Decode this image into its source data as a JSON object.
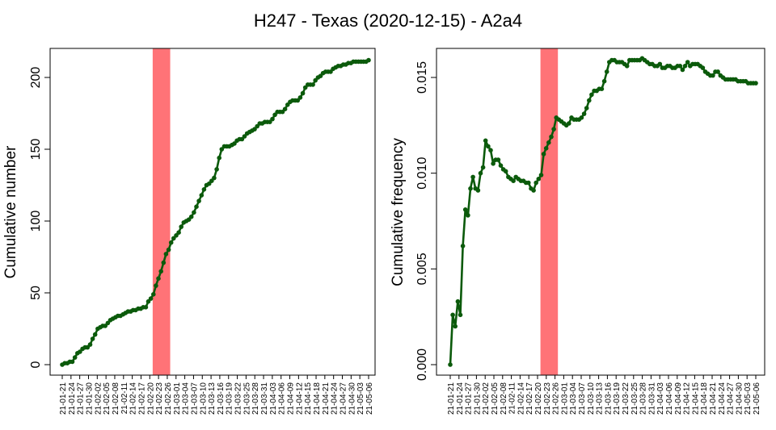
{
  "title": "H247 - Texas (2020-12-15) - A2a4",
  "colors": {
    "line": "#0b5a0b",
    "highlight": "#ff7377",
    "frame": "#000000"
  },
  "x_tick_labels": [
    "21-01-21",
    "21-01-24",
    "21-01-27",
    "21-01-30",
    "21-02-02",
    "21-02-05",
    "21-02-08",
    "21-02-11",
    "21-02-14",
    "21-02-17",
    "21-02-20",
    "21-02-23",
    "21-02-26",
    "21-03-01",
    "21-03-04",
    "21-03-07",
    "21-03-10",
    "21-03-13",
    "21-03-16",
    "21-03-19",
    "21-03-22",
    "21-03-25",
    "21-03-28",
    "21-03-31",
    "21-04-03",
    "21-04-06",
    "21-04-09",
    "21-04-12",
    "21-04-15",
    "21-04-18",
    "21-04-21",
    "21-04-24",
    "21-04-27",
    "21-04-30",
    "21-05-03",
    "21-05-06"
  ],
  "chart_data": [
    {
      "type": "line",
      "x_start": "21-01-21",
      "x_end": "21-05-06",
      "highlight_span": [
        "21-02-21",
        "21-02-27"
      ],
      "xlabel": "",
      "ylabel": "Cumulative number",
      "ylim": [
        0,
        220
      ],
      "yticks": [
        0,
        50,
        100,
        150,
        200
      ],
      "grid": false,
      "values": [
        0,
        1,
        1,
        2,
        2,
        5,
        8,
        9,
        11,
        12,
        12,
        14,
        18,
        21,
        25,
        26,
        27,
        27,
        29,
        31,
        32,
        33,
        34,
        34,
        35,
        36,
        37,
        37,
        38,
        38,
        39,
        39,
        40,
        40,
        44,
        46,
        49,
        55,
        60,
        65,
        71,
        77,
        80,
        85,
        88,
        90,
        92,
        96,
        99,
        100,
        101,
        103,
        106,
        110,
        114,
        118,
        122,
        125,
        126,
        128,
        130,
        136,
        144,
        150,
        152,
        152,
        152,
        153,
        154,
        156,
        157,
        157,
        159,
        161,
        162,
        163,
        164,
        166,
        168,
        168,
        169,
        169,
        169,
        171,
        174,
        176,
        176,
        176,
        178,
        181,
        183,
        184,
        184,
        184,
        186,
        189,
        193,
        195,
        195,
        195,
        198,
        200,
        201,
        203,
        204,
        204,
        204,
        206,
        207,
        208,
        208,
        209,
        209,
        210,
        210,
        211,
        211,
        211,
        211,
        211,
        211,
        212
      ],
      "x_tick_labels_ref": "x_tick_labels"
    },
    {
      "type": "line",
      "x_start": "21-01-21",
      "x_end": "21-05-06",
      "highlight_span": [
        "21-02-21",
        "21-02-27"
      ],
      "xlabel": "",
      "ylabel": "Cumulative frequency",
      "ylim": [
        0,
        0.0162
      ],
      "yticks": [
        0.0,
        0.005,
        0.01,
        0.015
      ],
      "ytick_labels": [
        "0.000",
        "0.005",
        "0.010",
        "0.015"
      ],
      "grid": false,
      "values": [
        0,
        0.0026,
        0.002,
        0.0033,
        0.0026,
        0.0062,
        0.0081,
        0.0078,
        0.0092,
        0.0098,
        0.0092,
        0.0091,
        0.01,
        0.0103,
        0.0117,
        0.0114,
        0.0112,
        0.0105,
        0.0107,
        0.0107,
        0.0104,
        0.0102,
        0.0101,
        0.0098,
        0.0097,
        0.0096,
        0.0098,
        0.0097,
        0.0096,
        0.0096,
        0.0095,
        0.0095,
        0.0092,
        0.0091,
        0.0095,
        0.0097,
        0.0099,
        0.011,
        0.0113,
        0.0116,
        0.0119,
        0.0123,
        0.0129,
        0.0128,
        0.0127,
        0.0126,
        0.0125,
        0.0126,
        0.0129,
        0.0128,
        0.0128,
        0.0128,
        0.0129,
        0.0131,
        0.0134,
        0.0138,
        0.0141,
        0.0143,
        0.0143,
        0.0144,
        0.0144,
        0.0148,
        0.0153,
        0.0158,
        0.0159,
        0.0159,
        0.0158,
        0.0158,
        0.0158,
        0.0157,
        0.0156,
        0.0159,
        0.0159,
        0.0159,
        0.0159,
        0.0159,
        0.016,
        0.0159,
        0.0158,
        0.0157,
        0.0157,
        0.0156,
        0.0156,
        0.0157,
        0.0155,
        0.0155,
        0.0156,
        0.0156,
        0.0155,
        0.0155,
        0.0156,
        0.0156,
        0.0154,
        0.0156,
        0.0158,
        0.0156,
        0.0157,
        0.0157,
        0.0157,
        0.0156,
        0.0155,
        0.0153,
        0.0152,
        0.0151,
        0.0151,
        0.0153,
        0.0153,
        0.0151,
        0.015,
        0.0149,
        0.0149,
        0.0149,
        0.0149,
        0.0149,
        0.0148,
        0.0148,
        0.0148,
        0.0148,
        0.0147,
        0.0147,
        0.0147,
        0.0147
      ]
    }
  ]
}
